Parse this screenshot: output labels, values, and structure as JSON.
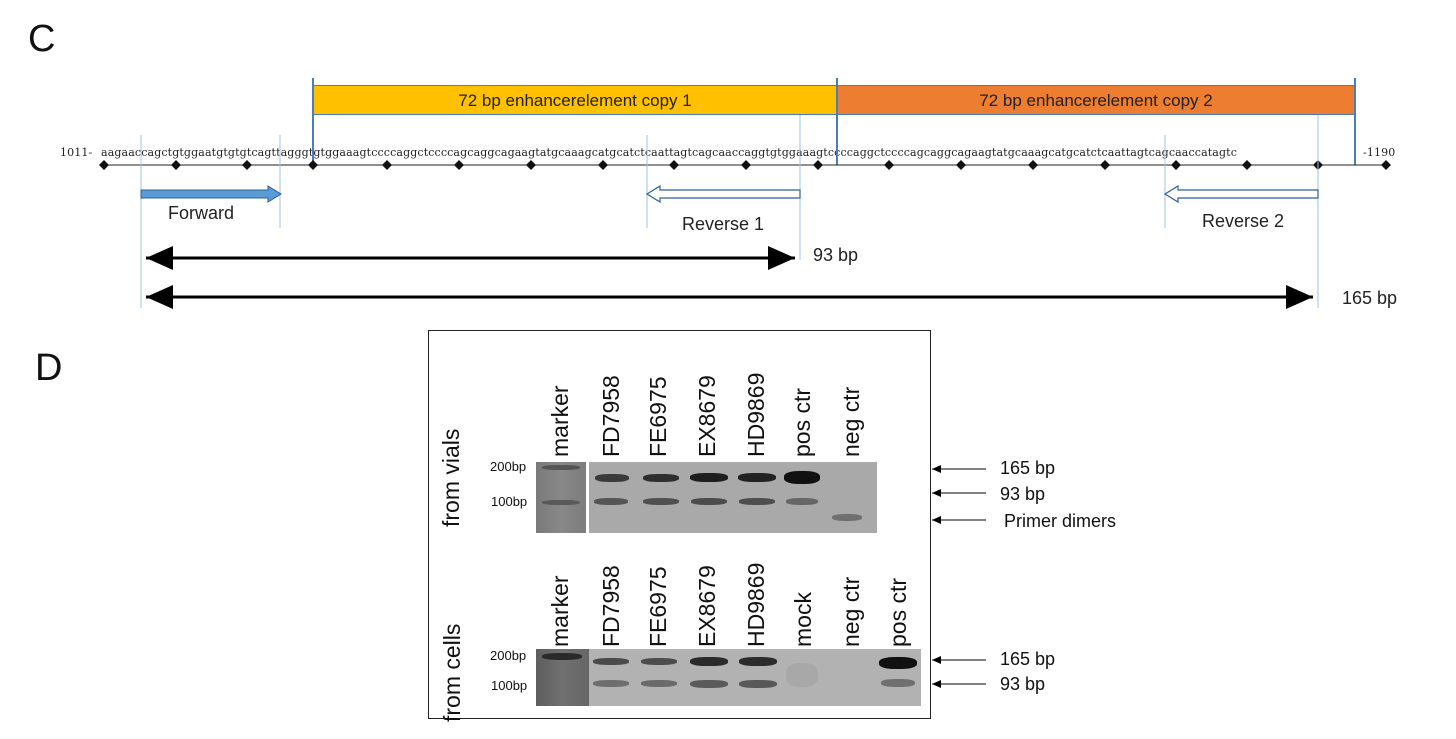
{
  "panel_c": {
    "letter": "C",
    "enhancer_copy1": {
      "label": "72 bp enhancerelement copy 1",
      "color": "#ffc000"
    },
    "enhancer_copy2": {
      "label": "72 bp enhancerelement copy 2",
      "color": "#ed7d31"
    },
    "seq_start": "1011-",
    "sequence": "aagaaccagctgtggaatgtgtgtcagttagggtgtggaaagtccccaggctccccagcaggcagaagtatgcaaagcatgcatctcaattagtcagcaaccaggtgtggaaagtccccaggctccccagcaggcagaagtatgcaaagcatgcatctcaattagtcagcaaccatagtc",
    "seq_end": "-1190",
    "primer_forward": "Forward",
    "primer_reverse1": "Reverse 1",
    "primer_reverse2": "Reverse 2",
    "product_short": "93 bp",
    "product_long": "165 bp",
    "primer_color": "#4a7ebb"
  },
  "panel_d": {
    "letter": "D",
    "top": {
      "side_label": "from vials",
      "lanes": [
        "marker",
        "FD7958",
        "FE6975",
        "EX8679",
        "HD9869",
        "pos ctr",
        "neg ctr"
      ],
      "marker_200": "200bp",
      "marker_100": "100bp"
    },
    "bottom": {
      "side_label": "from cells",
      "lanes": [
        "marker",
        "FD7958",
        "FE6975",
        "EX8679",
        "HD9869",
        "mock",
        "neg ctr",
        "pos ctr"
      ],
      "marker_200": "200bp",
      "marker_100": "100bp"
    },
    "arrows_top": [
      "165 bp",
      "93 bp",
      "Primer dimers"
    ],
    "arrows_bottom": [
      "165 bp",
      "93 bp"
    ]
  }
}
